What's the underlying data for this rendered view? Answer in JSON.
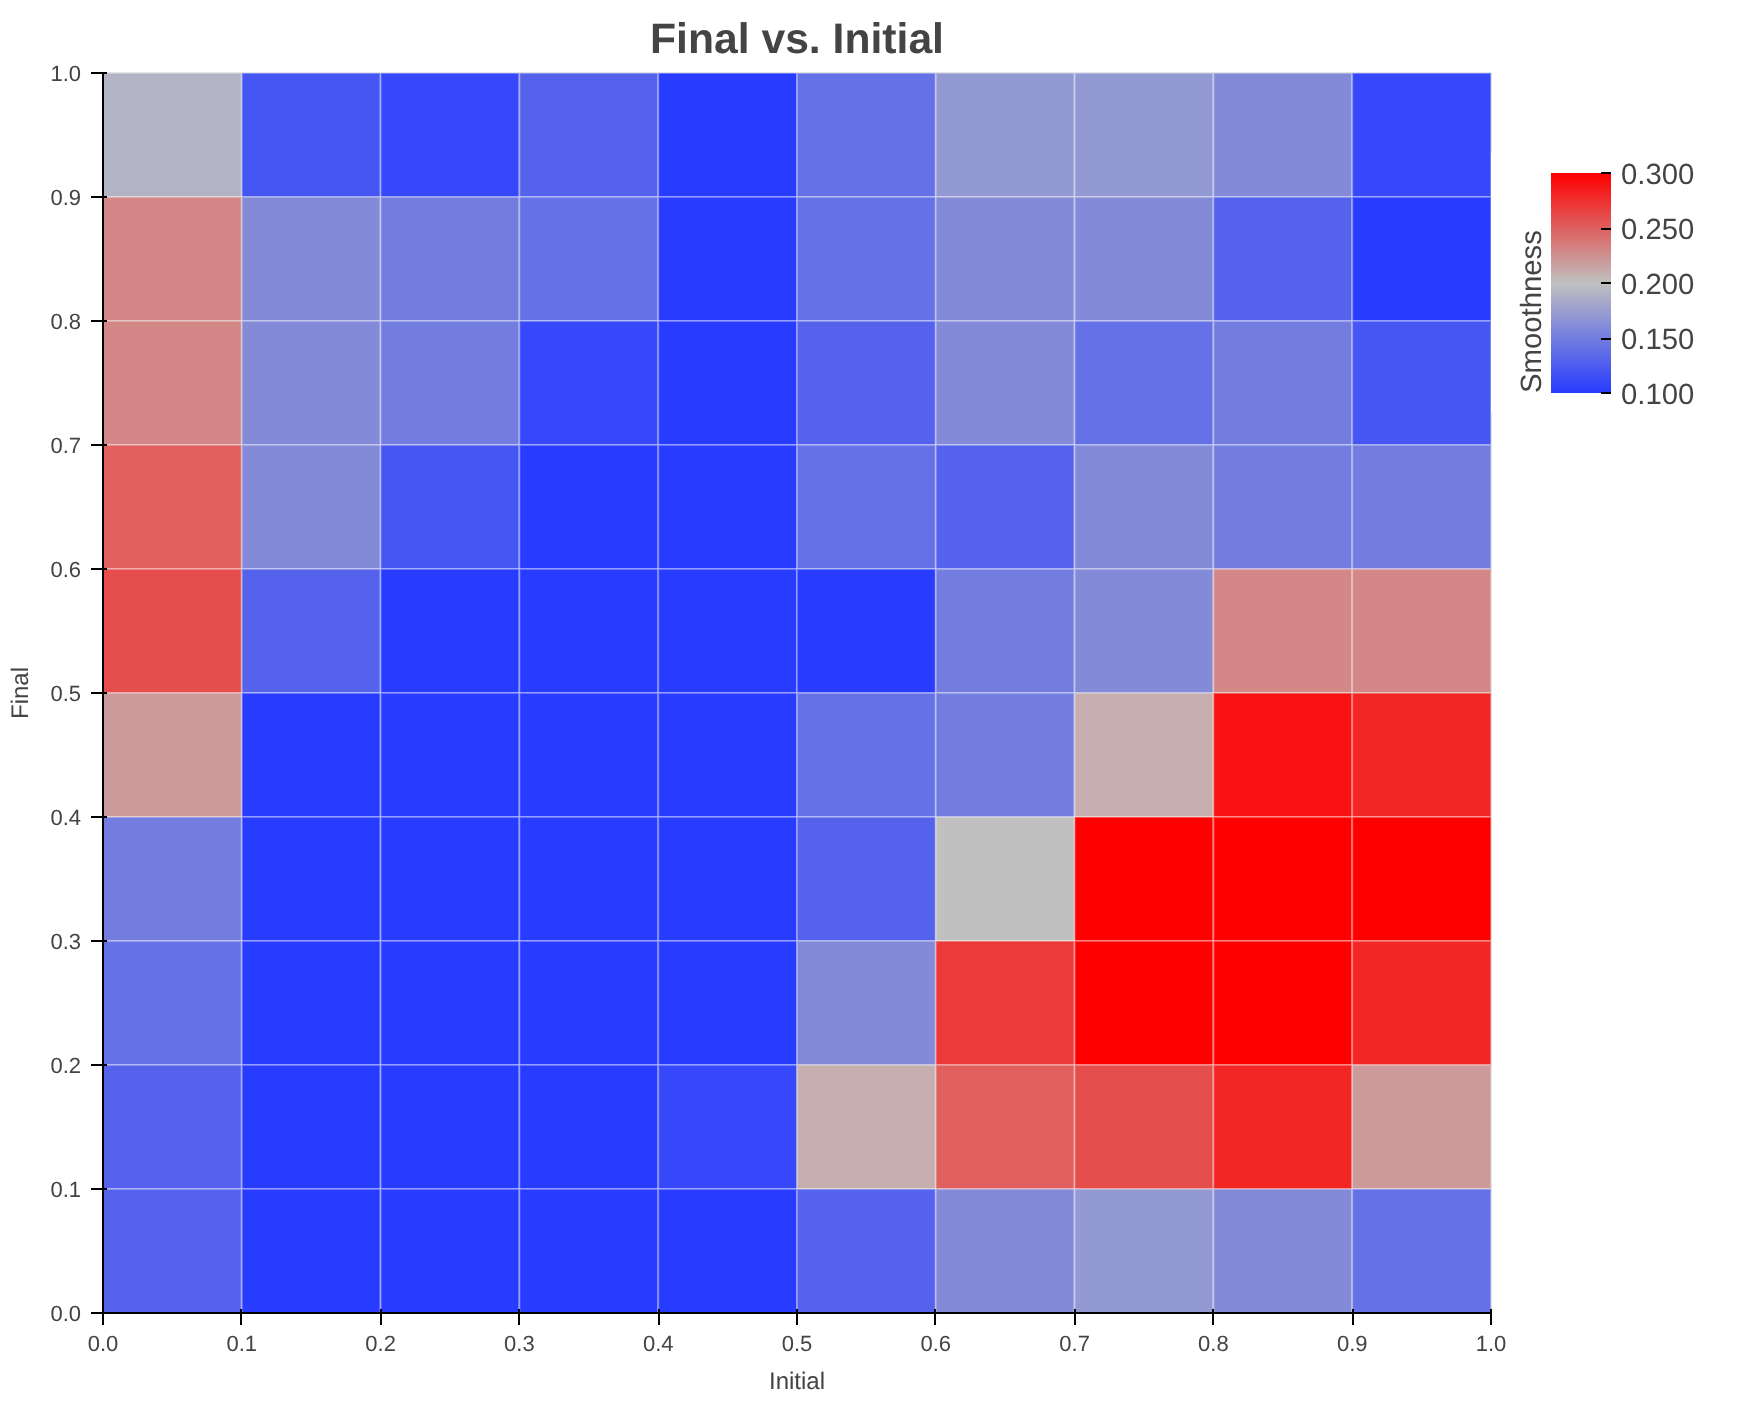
{
  "chart_data": {
    "type": "heatmap",
    "title": "Final vs. Initial",
    "xlabel": "Initial",
    "ylabel": "Final",
    "clabel": "Smoothness",
    "xlim": [
      0,
      1
    ],
    "ylim": [
      0,
      1
    ],
    "xticks": [
      {
        "value": 0,
        "label": "0.0"
      },
      0.1,
      0.2,
      0.3,
      0.4,
      0.5,
      0.6,
      0.7,
      0.8,
      0.9,
      {
        "value": 1,
        "label": "1.0"
      }
    ],
    "yticks": [
      {
        "value": 0,
        "label": "0.0"
      },
      0.1,
      0.2,
      0.3,
      0.4,
      0.5,
      0.6,
      0.7,
      0.8,
      0.9,
      {
        "value": 1,
        "label": "1.0"
      }
    ],
    "clim": [
      0.1,
      0.3
    ],
    "cticks": [
      {
        "value": 0.1,
        "label": "0.100"
      },
      {
        "value": 0.15,
        "label": "0.150"
      },
      {
        "value": 0.2,
        "label": "0.200"
      },
      {
        "value": 0.25,
        "label": "0.250"
      },
      {
        "value": 0.3,
        "label": "0.300"
      }
    ],
    "cells": [
      [
        0.19,
        0.12,
        0.11,
        0.13,
        0.1,
        0.14,
        0.17,
        0.17,
        0.16,
        0.11
      ],
      [
        0.23,
        0.16,
        0.15,
        0.14,
        0.1,
        0.14,
        0.16,
        0.16,
        0.13,
        0.1
      ],
      [
        0.23,
        0.16,
        0.15,
        0.11,
        0.1,
        0.13,
        0.16,
        0.14,
        0.15,
        0.12
      ],
      [
        0.25,
        0.16,
        0.12,
        0.1,
        0.1,
        0.14,
        0.13,
        0.16,
        0.15,
        0.15
      ],
      [
        0.26,
        0.13,
        0.1,
        0.1,
        0.1,
        0.1,
        0.15,
        0.16,
        0.23,
        0.23
      ],
      [
        0.22,
        0.1,
        0.1,
        0.1,
        0.1,
        0.14,
        0.15,
        0.21,
        0.29,
        0.28
      ],
      [
        0.15,
        0.1,
        0.1,
        0.1,
        0.1,
        0.13,
        0.2,
        0.3,
        0.3,
        0.3
      ],
      [
        0.14,
        0.1,
        0.1,
        0.1,
        0.1,
        0.16,
        0.27,
        0.3,
        0.3,
        0.28
      ],
      [
        0.13,
        0.1,
        0.1,
        0.1,
        0.11,
        0.21,
        0.25,
        0.26,
        0.28,
        0.22
      ],
      [
        0.13,
        0.1,
        0.1,
        0.1,
        0.1,
        0.13,
        0.16,
        0.17,
        0.16,
        0.14
      ]
    ]
  }
}
